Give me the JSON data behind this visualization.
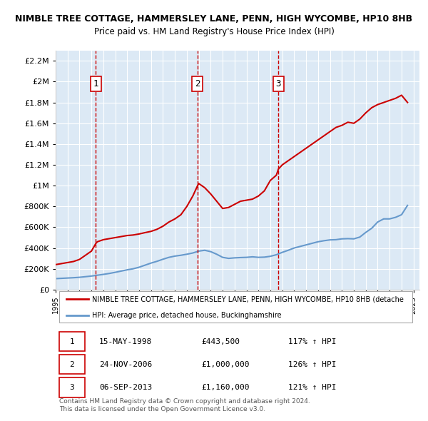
{
  "title_line1": "NIMBLE TREE COTTAGE, HAMMERSLEY LANE, PENN, HIGH WYCOMBE, HP10 8HB",
  "title_line2": "Price paid vs. HM Land Registry's House Price Index (HPI)",
  "background_color": "#dce9f5",
  "plot_bg_color": "#dce9f5",
  "ylim": [
    0,
    2300000
  ],
  "yticks": [
    0,
    200000,
    400000,
    600000,
    800000,
    1000000,
    1200000,
    1400000,
    1600000,
    1800000,
    2000000,
    2200000
  ],
  "ytick_labels": [
    "£0",
    "£200K",
    "£400K",
    "£600K",
    "£800K",
    "£1M",
    "£1.2M",
    "£1.4M",
    "£1.6M",
    "£1.8M",
    "£2M",
    "£2.2M"
  ],
  "xmin": 1995.0,
  "xmax": 2025.5,
  "red_line_color": "#cc0000",
  "blue_line_color": "#6699cc",
  "sale_markers": [
    {
      "year": 1998.37,
      "price": 443500,
      "label": "1"
    },
    {
      "year": 2006.9,
      "price": 1000000,
      "label": "2"
    },
    {
      "year": 2013.68,
      "price": 1160000,
      "label": "3"
    }
  ],
  "legend_red_label": "NIMBLE TREE COTTAGE, HAMMERSLEY LANE, PENN, HIGH WYCOMBE, HP10 8HB (detache",
  "legend_blue_label": "HPI: Average price, detached house, Buckinghamshire",
  "table_rows": [
    {
      "num": "1",
      "date": "15-MAY-1998",
      "price": "£443,500",
      "hpi": "117% ↑ HPI"
    },
    {
      "num": "2",
      "date": "24-NOV-2006",
      "price": "£1,000,000",
      "hpi": "126% ↑ HPI"
    },
    {
      "num": "3",
      "date": "06-SEP-2013",
      "price": "£1,160,000",
      "hpi": "121% ↑ HPI"
    }
  ],
  "footer_text": "Contains HM Land Registry data © Crown copyright and database right 2024.\nThis data is licensed under the Open Government Licence v3.0.",
  "hpi_x": [
    1995,
    1995.5,
    1996,
    1996.5,
    1997,
    1997.5,
    1998,
    1998.5,
    1999,
    1999.5,
    2000,
    2000.5,
    2001,
    2001.5,
    2002,
    2002.5,
    2003,
    2003.5,
    2004,
    2004.5,
    2005,
    2005.5,
    2006,
    2006.5,
    2007,
    2007.5,
    2008,
    2008.5,
    2009,
    2009.5,
    2010,
    2010.5,
    2011,
    2011.5,
    2012,
    2012.5,
    2013,
    2013.5,
    2014,
    2014.5,
    2015,
    2015.5,
    2016,
    2016.5,
    2017,
    2017.5,
    2018,
    2018.5,
    2019,
    2019.5,
    2020,
    2020.5,
    2021,
    2021.5,
    2022,
    2022.5,
    2023,
    2023.5,
    2024,
    2024.5
  ],
  "hpi_y": [
    105000,
    108000,
    111000,
    114000,
    118000,
    124000,
    130000,
    138000,
    146000,
    155000,
    166000,
    178000,
    190000,
    200000,
    215000,
    235000,
    255000,
    272000,
    292000,
    310000,
    322000,
    330000,
    340000,
    352000,
    370000,
    378000,
    365000,
    340000,
    310000,
    300000,
    305000,
    308000,
    310000,
    315000,
    310000,
    312000,
    320000,
    335000,
    358000,
    378000,
    400000,
    415000,
    430000,
    445000,
    460000,
    470000,
    478000,
    480000,
    488000,
    490000,
    488000,
    505000,
    550000,
    590000,
    650000,
    680000,
    680000,
    695000,
    720000,
    810000
  ],
  "price_x": [
    1995,
    1995.5,
    1996,
    1996.5,
    1997,
    1997.5,
    1998,
    1998.37,
    1998.5,
    1999,
    1999.5,
    2000,
    2000.5,
    2001,
    2001.5,
    2002,
    2002.5,
    2003,
    2003.5,
    2004,
    2004.5,
    2005,
    2005.5,
    2006,
    2006.5,
    2006.9,
    2007,
    2007.5,
    2008,
    2008.5,
    2009,
    2009.5,
    2010,
    2010.5,
    2011,
    2011.5,
    2012,
    2012.5,
    2013,
    2013.5,
    2013.68,
    2014,
    2014.5,
    2015,
    2015.5,
    2016,
    2016.5,
    2017,
    2017.5,
    2018,
    2018.5,
    2019,
    2019.5,
    2020,
    2020.5,
    2021,
    2021.5,
    2022,
    2022.5,
    2023,
    2023.5,
    2024,
    2024.5
  ],
  "price_y": [
    240000,
    250000,
    260000,
    270000,
    290000,
    330000,
    370000,
    443500,
    460000,
    480000,
    490000,
    500000,
    510000,
    520000,
    525000,
    535000,
    548000,
    560000,
    580000,
    610000,
    650000,
    680000,
    720000,
    800000,
    900000,
    1000000,
    1020000,
    980000,
    920000,
    850000,
    780000,
    790000,
    820000,
    850000,
    860000,
    870000,
    900000,
    950000,
    1050000,
    1100000,
    1160000,
    1200000,
    1240000,
    1280000,
    1320000,
    1360000,
    1400000,
    1440000,
    1480000,
    1520000,
    1560000,
    1580000,
    1610000,
    1600000,
    1640000,
    1700000,
    1750000,
    1780000,
    1800000,
    1820000,
    1840000,
    1870000,
    1800000
  ]
}
